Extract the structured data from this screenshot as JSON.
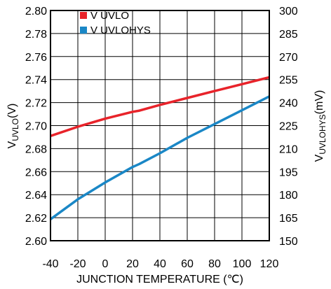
{
  "chart_data": {
    "type": "line",
    "title": "",
    "xlabel": "JUNCTION TEMPERATURE (℃)",
    "ylabel_left_main": "V",
    "ylabel_left_sub": "UVLO",
    "ylabel_left_unit": "(V)",
    "ylabel_right_main": "V",
    "ylabel_right_sub": "UVLOHYS",
    "ylabel_right_unit": "(mV)",
    "xlim": [
      -40,
      120
    ],
    "ylim_left": [
      2.6,
      2.8
    ],
    "ylim_right": [
      150,
      300
    ],
    "x_ticks": [
      "-40",
      "-20",
      "0",
      "20",
      "40",
      "60",
      "80",
      "100",
      "120"
    ],
    "y_left_ticks": [
      "2.80",
      "2.78",
      "2.76",
      "2.74",
      "2.72",
      "2.70",
      "2.68",
      "2.66",
      "2.64",
      "2.62",
      "2.60"
    ],
    "y_right_ticks": [
      "300",
      "285",
      "270",
      "255",
      "240",
      "225",
      "210",
      "195",
      "180",
      "165",
      "150"
    ],
    "grid": true,
    "legend_position": "top-left",
    "series": [
      {
        "name": "V UVLO",
        "axis": "left",
        "color": "#e8232a",
        "x": [
          -40,
          -20,
          0,
          20,
          25,
          40,
          60,
          80,
          100,
          120
        ],
        "values": [
          2.691,
          2.699,
          2.706,
          2.712,
          2.713,
          2.718,
          2.724,
          2.73,
          2.736,
          2.742
        ]
      },
      {
        "name": "V UVLOHYS",
        "axis": "right",
        "color": "#1a87c6",
        "x": [
          -40,
          -20,
          0,
          20,
          25,
          40,
          60,
          80,
          100,
          120
        ],
        "values": [
          164,
          177,
          188,
          198,
          200,
          207,
          217,
          226,
          235,
          244
        ]
      }
    ]
  }
}
